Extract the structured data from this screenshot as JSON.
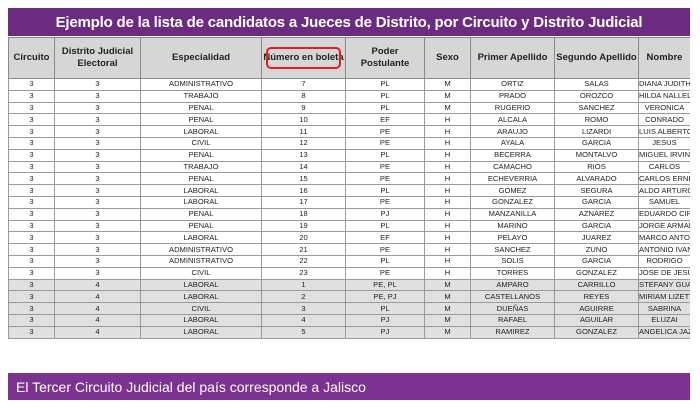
{
  "title": "Ejemplo de la lista de candidatos a Jueces de Distrito, por Circuito y Distrito Judicial",
  "columns": [
    "Circuito",
    "Distrito Judicial Electoral",
    "Especialidad",
    "Número en boleta",
    "Poder Postulante",
    "Sexo",
    "Primer Apellido",
    "Segundo Apellido",
    "Nombre"
  ],
  "highlight_color": "#e0201b",
  "header_color": "#6b2c7f",
  "footer_color": "#7b3290",
  "rows": [
    [
      "3",
      "3",
      "ADMINISTRATIVO",
      "7",
      "PL",
      "M",
      "ORTIZ",
      "SALAS",
      "DIANA JUDITH"
    ],
    [
      "3",
      "3",
      "TRABAJO",
      "8",
      "PL",
      "M",
      "PRADO",
      "OROZCO",
      "HILDA NALLELY"
    ],
    [
      "3",
      "3",
      "PENAL",
      "9",
      "PL",
      "M",
      "RUGERIO",
      "SANCHEZ",
      "VERONICA"
    ],
    [
      "3",
      "3",
      "PENAL",
      "10",
      "EF",
      "H",
      "ALCALA",
      "ROMO",
      "CONRADO"
    ],
    [
      "3",
      "3",
      "LABORAL",
      "11",
      "PE",
      "H",
      "ARAUJO",
      "LIZARDI",
      "LUIS ALBERTO"
    ],
    [
      "3",
      "3",
      "CIVIL",
      "12",
      "PE",
      "H",
      "AYALA",
      "GARCIA",
      "JESUS"
    ],
    [
      "3",
      "3",
      "PENAL",
      "13",
      "PL",
      "H",
      "BECERRA",
      "MONTALVO",
      "MIGUEL IRVING"
    ],
    [
      "3",
      "3",
      "TRABAJO",
      "14",
      "PE",
      "H",
      "CAMACHO",
      "RIOS",
      "CARLOS"
    ],
    [
      "3",
      "3",
      "PENAL",
      "15",
      "PE",
      "H",
      "ECHEVERRIA",
      "ALVARADO",
      "CARLOS ERNESTO"
    ],
    [
      "3",
      "3",
      "LABORAL",
      "16",
      "PL",
      "H",
      "GOMEZ",
      "SEGURA",
      "ALDO ARTURO"
    ],
    [
      "3",
      "3",
      "LABORAL",
      "17",
      "PE",
      "H",
      "GONZALEZ",
      "GARCIA",
      "SAMUEL"
    ],
    [
      "3",
      "3",
      "PENAL",
      "18",
      "PJ",
      "H",
      "MANZANILLA",
      "AZNAREZ",
      "EDUARDO CIPRIANO"
    ],
    [
      "3",
      "3",
      "PENAL",
      "19",
      "PL",
      "H",
      "MARINO",
      "GARCIA",
      "JORGE ARMANDO"
    ],
    [
      "3",
      "3",
      "LABORAL",
      "20",
      "EF",
      "H",
      "PELAYO",
      "JUAREZ",
      "MARCO ANTONIO"
    ],
    [
      "3",
      "3",
      "ADMINISTRATIVO",
      "21",
      "PE",
      "H",
      "SANCHEZ",
      "ZUNO",
      "ANTONIO IVAN"
    ],
    [
      "3",
      "3",
      "ADMINISTRATIVO",
      "22",
      "PL",
      "H",
      "SOLIS",
      "GARCIA",
      "RODRIGO"
    ],
    [
      "3",
      "3",
      "CIVIL",
      "23",
      "PE",
      "H",
      "TORRES",
      "GONZALEZ",
      "JOSE DE JESUS"
    ],
    [
      "3",
      "4",
      "LABORAL",
      "1",
      "PE, PL",
      "M",
      "AMPARO",
      "CARRILLO",
      "STEFANY GUADALUPE"
    ],
    [
      "3",
      "4",
      "LABORAL",
      "2",
      "PE, PJ",
      "M",
      "CASTELLANOS",
      "REYES",
      "MIRIAM LIZETTE"
    ],
    [
      "3",
      "4",
      "CIVIL",
      "3",
      "PL",
      "M",
      "DUEÑAS",
      "AGUIRRE",
      "SABRINA"
    ],
    [
      "3",
      "4",
      "LABORAL",
      "4",
      "PJ",
      "M",
      "RAFAEL",
      "AGUILAR",
      "ELUZAI"
    ],
    [
      "3",
      "4",
      "LABORAL",
      "5",
      "PJ",
      "M",
      "RAMIREZ",
      "GONZALEZ",
      "ANGELICA JAZMIN"
    ]
  ],
  "footer": "El Tercer Circuito Judicial del país corresponde a Jalisco"
}
